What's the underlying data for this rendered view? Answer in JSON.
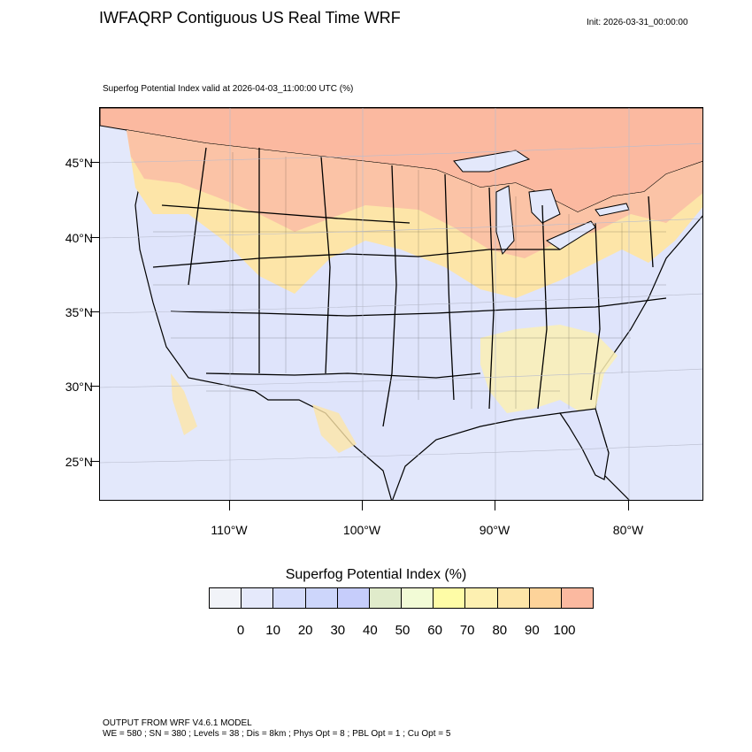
{
  "header": {
    "title": "IWFAQRP Contiguous US Real Time WRF",
    "init": "Init: 2026-03-31_00:00:00"
  },
  "map": {
    "subtitle": "Superfog Potential Index valid at 2026-04-03_11:00:00 UTC   (%)",
    "lat_labels": [
      "45°N",
      "40°N",
      "35°N",
      "30°N",
      "25°N"
    ],
    "lon_labels": [
      "110°W",
      "100°W",
      "90°W",
      "80°W"
    ],
    "colors": {
      "ocean": "#e3e8fb",
      "low": "#dfe4fb",
      "mid_yellow": "#fbeeb0",
      "orange": "#fdd49e",
      "salmon": "#fbb9a0",
      "border": "#000000"
    }
  },
  "colorbar": {
    "title": "Superfog Potential Index  (%)",
    "labels": [
      "0",
      "10",
      "20",
      "30",
      "40",
      "50",
      "60",
      "70",
      "80",
      "90",
      "100"
    ],
    "colors": [
      "#f1f3f8",
      "#e5e9fb",
      "#d5dcfb",
      "#cdd6fb",
      "#c6cdfb",
      "#e0ebcb",
      "#f2fbd6",
      "#fefca6",
      "#fdf0b1",
      "#fde5a8",
      "#fdd39a",
      "#fbb9a0"
    ]
  },
  "footer": {
    "line1": "OUTPUT FROM WRF V4.6.1 MODEL",
    "line2": "WE = 580 ; SN = 380 ; Levels = 38 ; Dis = 8km ; Phys Opt = 8 ; PBL Opt = 1 ; Cu Opt = 5"
  }
}
